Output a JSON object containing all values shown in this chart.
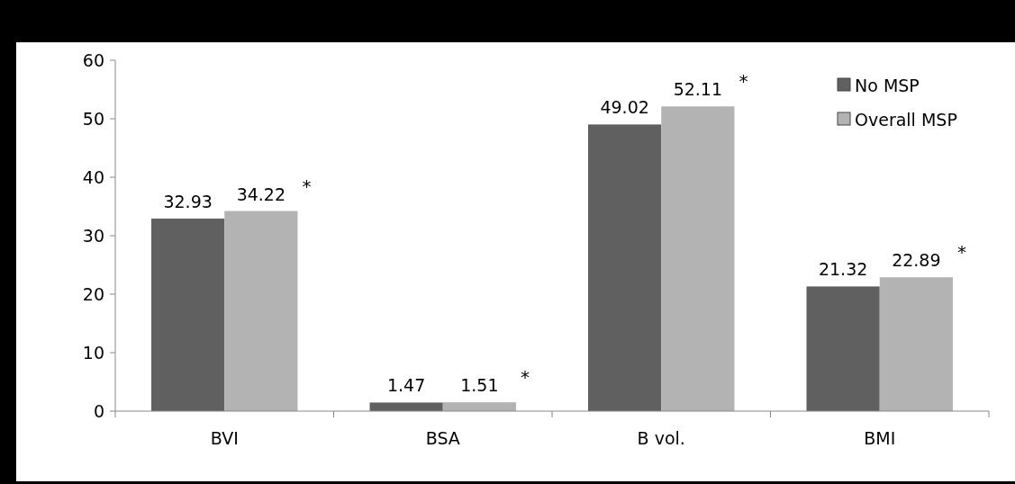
{
  "chart_data": {
    "type": "bar",
    "categories": [
      "BVI",
      "BSA",
      "B vol.",
      "BMI"
    ],
    "series": [
      {
        "name": "No MSP",
        "color": "#606060",
        "values": [
          32.93,
          1.47,
          49.02,
          21.32
        ]
      },
      {
        "name": "Overall MSP",
        "color": "#b3b3b3",
        "values": [
          34.22,
          1.51,
          52.11,
          22.89
        ]
      }
    ],
    "ylim": [
      0,
      60
    ],
    "yticks": [
      0,
      10,
      20,
      30,
      40,
      50,
      60
    ],
    "grid": false,
    "legend": "top right",
    "data_labels": true,
    "annotations": [
      "*",
      "*",
      "*",
      "*"
    ]
  }
}
